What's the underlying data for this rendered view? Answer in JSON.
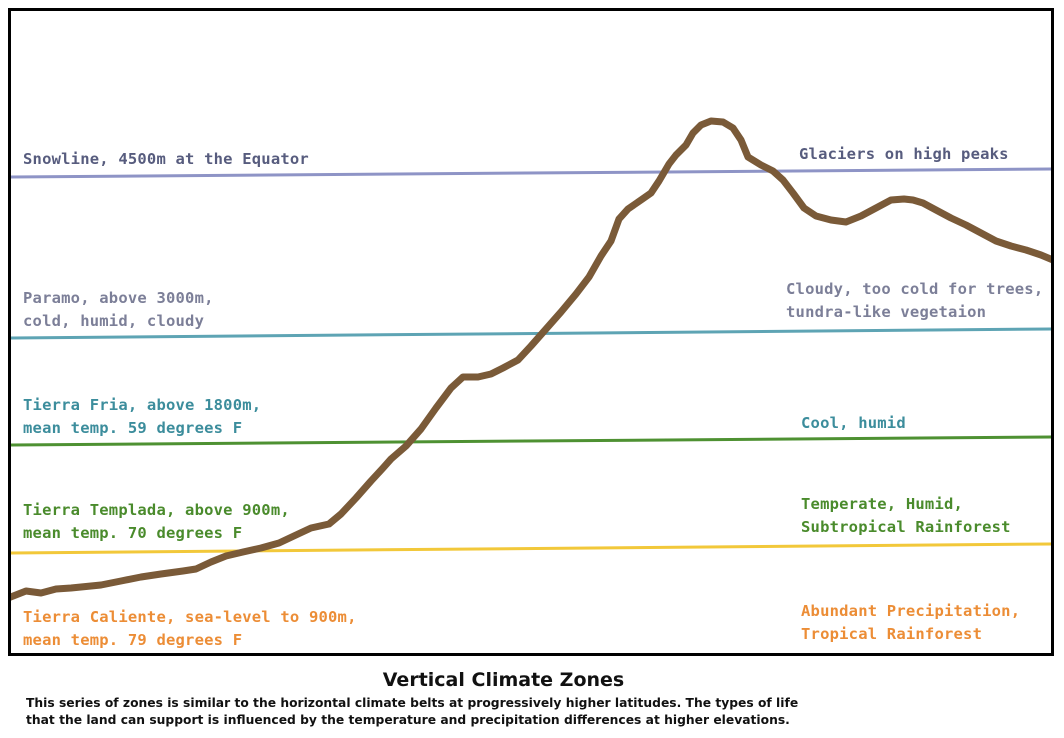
{
  "zones": {
    "snowline": {
      "left": "Snowline, 4500m  at the Equator",
      "right": "Glaciers on high peaks",
      "color": "#8e94c6"
    },
    "paramo": {
      "left_line1": "Paramo, above 3000m,",
      "left_line2": "cold, humid, cloudy",
      "right_line1": "Cloudy, too cold for trees,",
      "right_line2": "tundra-like vegetaion",
      "color": "#5ea4b4"
    },
    "fria": {
      "left_line1": "Tierra Fria, above 1800m,",
      "left_line2": "mean temp.  59 degrees F",
      "right": "Cool, humid",
      "color": "#4e9132"
    },
    "templada": {
      "left_line1": "Tierra Templada, above 900m,",
      "left_line2": "mean temp. 70 degrees F",
      "right_line1": "Temperate, Humid,",
      "right_line2": "Subtropical Rainforest",
      "color": "#f2c83a"
    },
    "caliente": {
      "left_line1": "Tierra Caliente, sea-level to 900m,",
      "left_line2": "mean temp. 79 degrees F",
      "right_line1": "Abundant Precipitation,",
      "right_line2": "Tropical Rainforest",
      "color": "#ec8d36"
    }
  },
  "mountain_color": "#7a5a38",
  "caption": {
    "title": "Vertical Climate Zones",
    "line1": "This series of zones is similar to the horizontal climate belts at progressively higher latitudes.  The types of life",
    "line2": "that the land can support is influenced by the temperature and precipitation differences at higher elevations."
  }
}
